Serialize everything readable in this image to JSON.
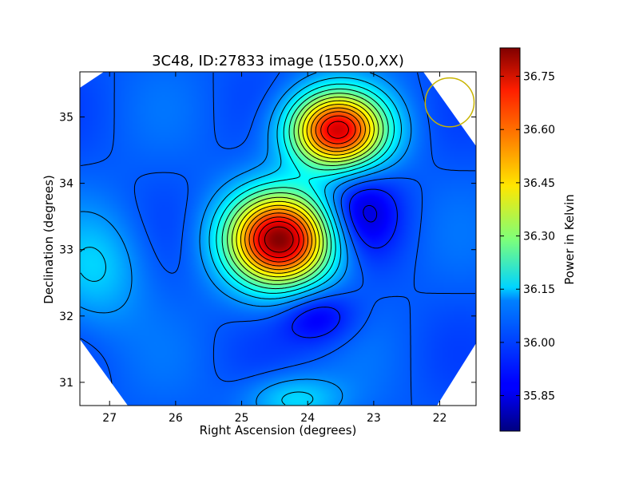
{
  "chart_data": {
    "type": "heatmap",
    "title": "3C48, ID:27833 image (1550.0,XX)",
    "xlabel": "Right Ascension (degrees)",
    "ylabel": "Declination (degrees)",
    "xlim": [
      27.45,
      21.45
    ],
    "ylim": [
      30.65,
      35.68
    ],
    "x_ticks": [
      27,
      26,
      25,
      24,
      23,
      22
    ],
    "y_ticks": [
      31,
      32,
      33,
      34,
      35
    ],
    "colorbar": {
      "label": "Power in Kelvin",
      "range": [
        35.75,
        36.83
      ],
      "ticks": [
        "35.85",
        "36.00",
        "36.15",
        "36.30",
        "36.45",
        "36.60",
        "36.75"
      ],
      "colormap": "jet"
    },
    "colors": {
      "beam_circle": "#c8b400",
      "contour": "#000000"
    },
    "beam": {
      "ra": 21.85,
      "dec": 35.22,
      "radius_deg": 0.37
    },
    "background_level": 35.98,
    "sources": [
      {
        "ra": 24.42,
        "dec": 33.15,
        "peak": 36.8,
        "sx": 0.55,
        "sy": 0.48
      },
      {
        "ra": 23.55,
        "dec": 34.8,
        "peak": 36.72,
        "sx": 0.5,
        "sy": 0.4
      },
      {
        "ra": 23.2,
        "dec": 33.55,
        "peak": 35.84,
        "sx": 0.4,
        "sy": 0.45
      },
      {
        "ra": 23.85,
        "dec": 32.0,
        "peak": 35.86,
        "sx": 0.4,
        "sy": 0.3
      },
      {
        "ra": 27.2,
        "dec": 32.7,
        "peak": 36.1,
        "sx": 0.5,
        "sy": 0.6
      },
      {
        "ra": 24.2,
        "dec": 30.75,
        "peak": 36.12,
        "sx": 0.5,
        "sy": 0.25
      }
    ]
  }
}
